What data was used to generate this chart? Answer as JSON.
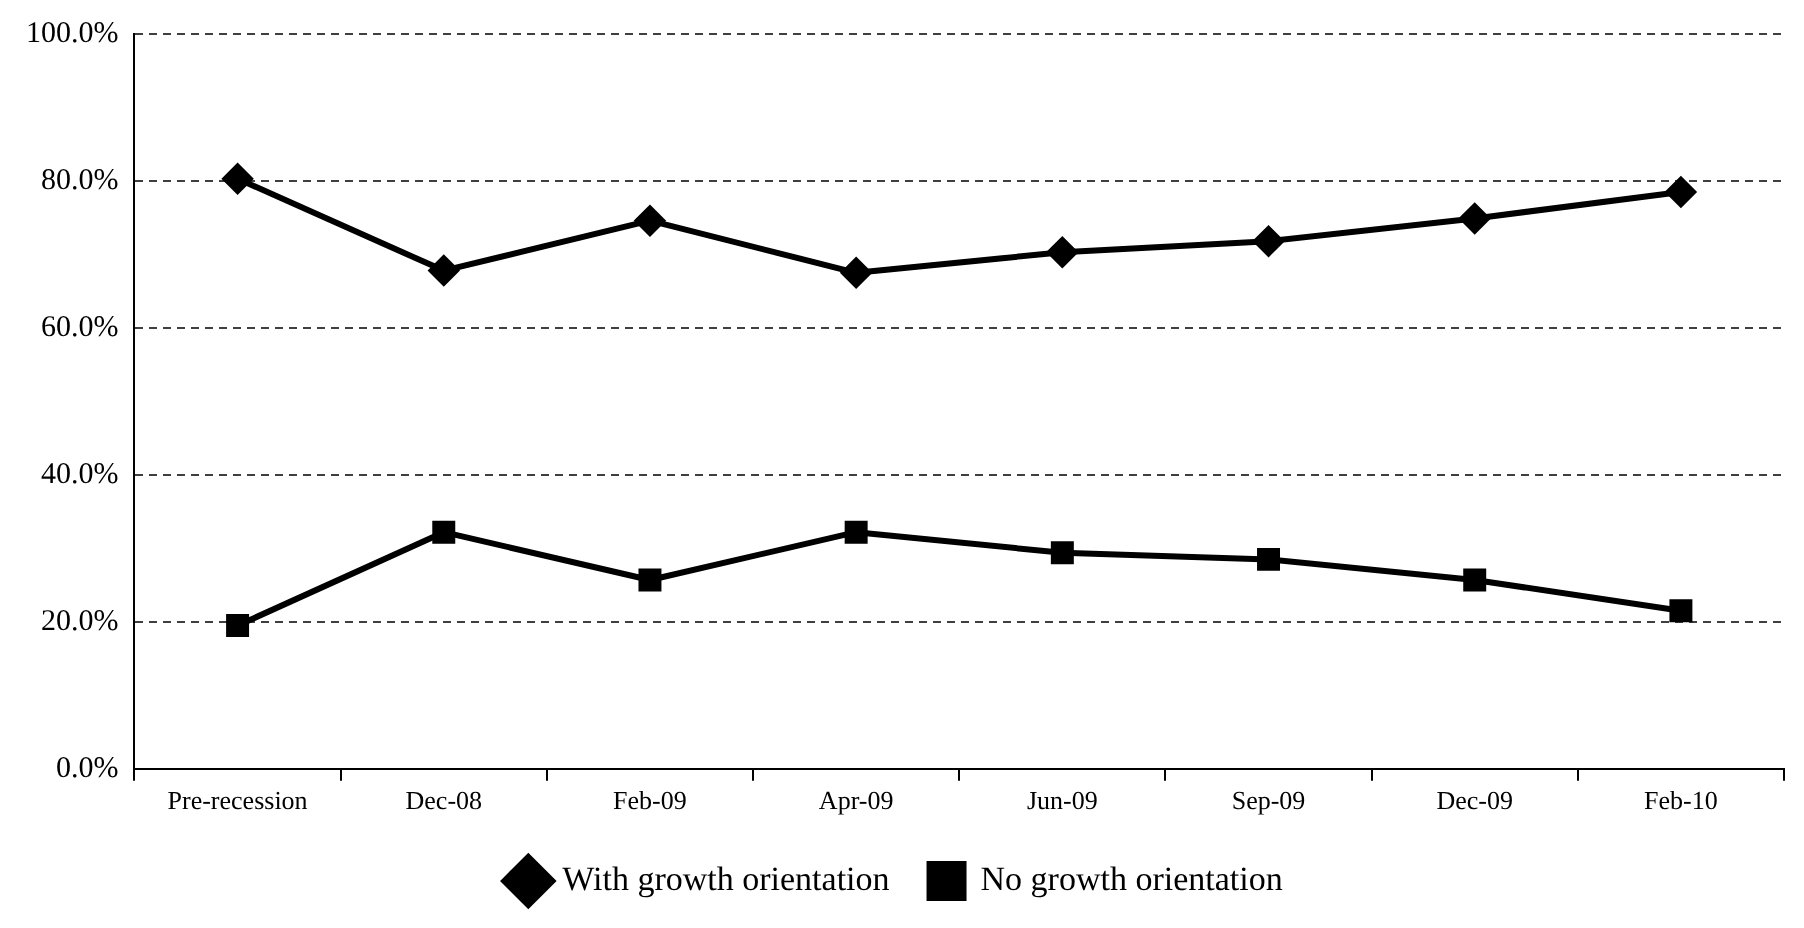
{
  "chart_data": {
    "type": "line",
    "categories": [
      "Pre-recession",
      "Dec-08",
      "Feb-09",
      "Apr-09",
      "Jun-09",
      "Sep-09",
      "Dec-09",
      "Feb-10"
    ],
    "series": [
      {
        "name": "With growth orientation",
        "color": "#000000",
        "marker": "diamond",
        "values": [
          80.3,
          67.8,
          74.6,
          67.5,
          70.3,
          71.8,
          74.9,
          78.5
        ]
      },
      {
        "name": "No growth orientation",
        "color": "#000000",
        "marker": "square",
        "values": [
          19.5,
          32.2,
          25.7,
          32.2,
          29.4,
          28.5,
          25.7,
          21.5
        ]
      }
    ],
    "ylim": [
      0,
      100
    ],
    "yticks": [
      {
        "value": 0,
        "label": "0.0%"
      },
      {
        "value": 20,
        "label": "20.0%"
      },
      {
        "value": 40,
        "label": "40.0%"
      },
      {
        "value": 60,
        "label": "60.0%"
      },
      {
        "value": 80,
        "label": "80.0%"
      },
      {
        "value": 100,
        "label": "100.0%"
      }
    ],
    "grid": "y",
    "legend": "bottom",
    "line_style": "solid"
  }
}
